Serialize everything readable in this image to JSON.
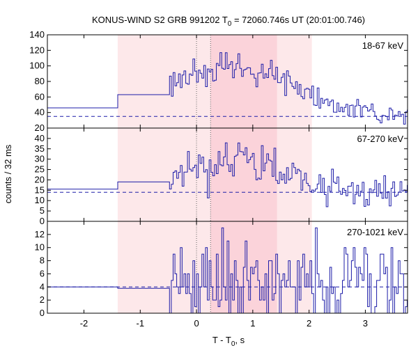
{
  "chart_data": {
    "type": "line",
    "title": {
      "prefix": "KONUS-WIND S2 GRB 991202 T",
      "sub": "0",
      "suffix": " = 72060.746s UT (20:01:00.746)"
    },
    "xlabel": {
      "prefix": "T - T",
      "sub": "0",
      "suffix": ", s"
    },
    "ylabel": "counts / 32 ms",
    "xlim": [
      -2.65,
      3.75
    ],
    "x_ticks": [
      -2,
      -1,
      0,
      1,
      2,
      3
    ],
    "x_tick_labels": [
      "-2",
      "-1",
      "0",
      "1",
      "2",
      "3"
    ],
    "shaded_regions": [
      {
        "from": -1.4,
        "to": 2.05,
        "color": "#fde8ea"
      },
      {
        "from": 0.25,
        "to": 1.43,
        "color": "#fbd3da"
      }
    ],
    "vertical_markers": [
      0,
      0.25
    ],
    "colors": {
      "series": "#1c1ca8",
      "background_line": "#1c1ca8",
      "marker": "#666666",
      "frame": "#000000"
    },
    "panels": [
      {
        "band": "18-67 keV",
        "ylim": [
          20,
          140
        ],
        "y_ticks": [
          20,
          40,
          60,
          80,
          100,
          120,
          140
        ],
        "y_tick_labels": [
          "20",
          "40",
          "60",
          "80",
          "100",
          "120",
          "140"
        ],
        "background_level": 35,
        "pre_burst": [
          {
            "x0": -2.65,
            "x1": -1.4,
            "y": 46
          },
          {
            "x0": -1.4,
            "x1": -0.48,
            "y": 63
          }
        ],
        "mean": [
          75,
          82,
          89,
          93,
          95,
          97,
          98,
          97,
          95,
          92,
          88,
          82,
          75,
          67,
          60,
          54,
          49,
          46,
          43,
          41,
          40,
          39,
          38,
          37
        ]
      },
      {
        "band": "67-270 keV",
        "ylim": [
          0,
          45
        ],
        "y_ticks": [
          0,
          5,
          10,
          15,
          20,
          25,
          30,
          35,
          40
        ],
        "y_tick_labels": [
          "0",
          "5",
          "10",
          "15",
          "20",
          "25",
          "30",
          "35",
          "40"
        ],
        "background_level": 14,
        "pre_burst": [
          {
            "x0": -2.65,
            "x1": -1.4,
            "y": 15.5
          },
          {
            "x0": -1.4,
            "x1": -0.48,
            "y": 19
          }
        ],
        "mean": [
          20,
          23,
          25,
          26,
          27,
          28,
          28,
          29,
          28,
          27,
          26,
          24,
          22,
          20,
          18,
          17,
          16,
          15.5,
          15,
          15,
          15,
          15,
          15,
          15
        ]
      },
      {
        "band": "270-1021 keV",
        "ylim": [
          0,
          14
        ],
        "y_ticks": [
          0,
          2,
          4,
          6,
          8,
          10,
          12
        ],
        "y_tick_labels": [
          "0",
          "2",
          "4",
          "6",
          "8",
          "10",
          "12"
        ],
        "background_level": 4,
        "pre_burst": [
          {
            "x0": -2.65,
            "x1": -1.4,
            "y": 4
          },
          {
            "x0": -1.4,
            "x1": -0.48,
            "y": 3.8
          }
        ],
        "mean": [
          4,
          4.2,
          4.5,
          4.8,
          5,
          5.2,
          5.3,
          5.3,
          5.2,
          5,
          4.8,
          4.6,
          4.4,
          4.3,
          4.2,
          4.2,
          4.2,
          4.2,
          4.3,
          4.3,
          4.3,
          4.3,
          4.3,
          4.3
        ]
      }
    ]
  }
}
